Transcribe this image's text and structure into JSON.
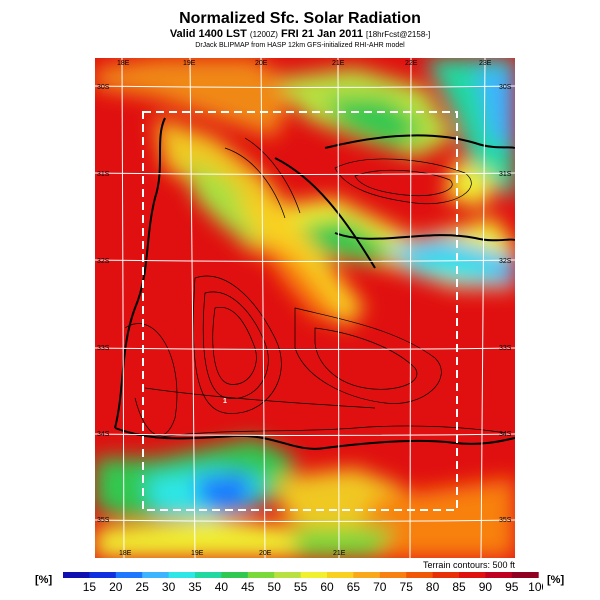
{
  "header": {
    "title": "Normalized Sfc. Solar Radiation",
    "valid": "Valid 1400 LST",
    "valid_small": "(1200Z)",
    "date": "FRI 21 Jan 2011",
    "fcst": "[18hrFcst@2158-]",
    "credit": "DrJack BLIPMAP from HASP 12km GFS-initialized RHI-AHR model"
  },
  "map": {
    "top_lon_labels": [
      "18E",
      "19E",
      "20E",
      "21E",
      "22E",
      "23E"
    ],
    "bottom_lon_labels": [
      "18E",
      "19E",
      "20E",
      "21E"
    ],
    "right_lat_labels": [
      "30S",
      "31S",
      "32S",
      "33S",
      "34S",
      "35S"
    ],
    "left_lat_labels": [
      "30S",
      "31S",
      "32S",
      "33S",
      "34S",
      "35S"
    ],
    "marker": "1",
    "terrain_note": "Terrain contours: 500 ft"
  },
  "colorbar": {
    "unit_left": "[%]",
    "unit_right": "[%]",
    "ticks": [
      "15",
      "20",
      "25",
      "30",
      "35",
      "40",
      "45",
      "50",
      "55",
      "60",
      "65",
      "70",
      "75",
      "80",
      "85",
      "90",
      "95",
      "100"
    ],
    "colors": [
      "#1010b0",
      "#1030e0",
      "#1e78ff",
      "#3cb4ff",
      "#2ee6e6",
      "#20d8a0",
      "#30c850",
      "#7ad83a",
      "#b8e040",
      "#f0f030",
      "#f8d020",
      "#f8a818",
      "#f88010",
      "#f05808",
      "#e83008",
      "#e01010",
      "#c00020",
      "#900020"
    ]
  }
}
